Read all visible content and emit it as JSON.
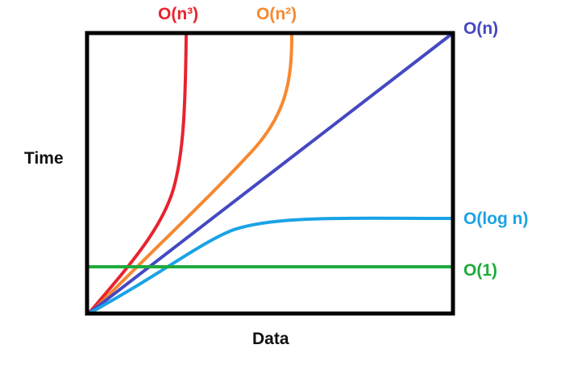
{
  "chart_data": {
    "type": "line",
    "title": "",
    "xlabel": "Data",
    "ylabel": "Time",
    "grid": false,
    "series": [
      {
        "name": "O(n³)",
        "color": "#e8232e",
        "kind": "cubic"
      },
      {
        "name": "O(n²)",
        "color": "#f7882f",
        "kind": "quadratic"
      },
      {
        "name": "O(n)",
        "color": "#4548c2",
        "kind": "linear"
      },
      {
        "name": "O(log n)",
        "color": "#1aa3e6",
        "kind": "log"
      },
      {
        "name": "O(1)",
        "color": "#1eaa3c",
        "kind": "constant"
      }
    ]
  }
}
